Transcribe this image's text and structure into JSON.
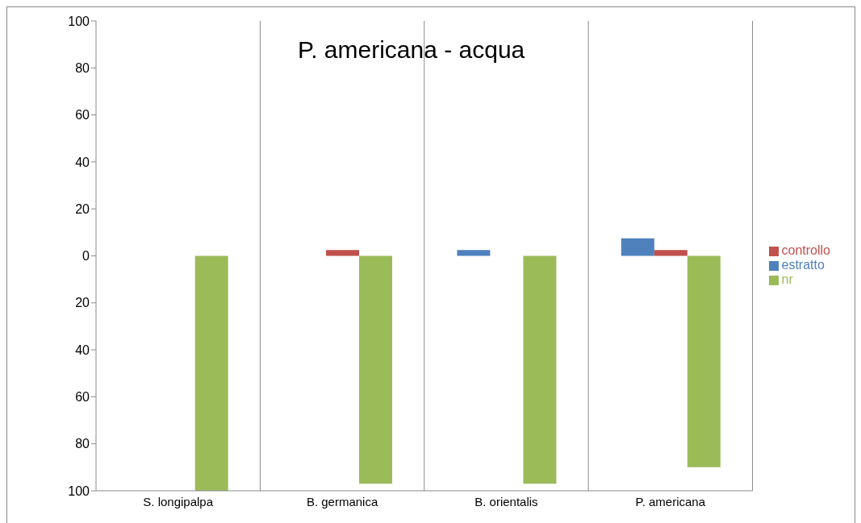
{
  "chart_data": {
    "type": "bar",
    "title": "P. americana - acqua",
    "categories": [
      "S. longipalpa",
      "B. germanica",
      "B. orientalis",
      "P. americana"
    ],
    "series": [
      {
        "name": "estratto",
        "color": "#4f81bd",
        "values": [
          0,
          0,
          2.5,
          7.5
        ]
      },
      {
        "name": "controllo",
        "color": "#c0504d",
        "values": [
          0,
          2.5,
          0,
          2.5
        ]
      },
      {
        "name": "nr",
        "color": "#9bbb59",
        "values": [
          -100,
          -97,
          -97,
          -90
        ]
      }
    ],
    "ylim": [
      -100,
      100
    ],
    "yticks": [
      {
        "value": -100,
        "label": "100"
      },
      {
        "value": -80,
        "label": "80"
      },
      {
        "value": -60,
        "label": "60"
      },
      {
        "value": -40,
        "label": "40"
      },
      {
        "value": -20,
        "label": "20"
      },
      0,
      20,
      40,
      60,
      80,
      100
    ],
    "grid": "x",
    "legend": "right"
  }
}
